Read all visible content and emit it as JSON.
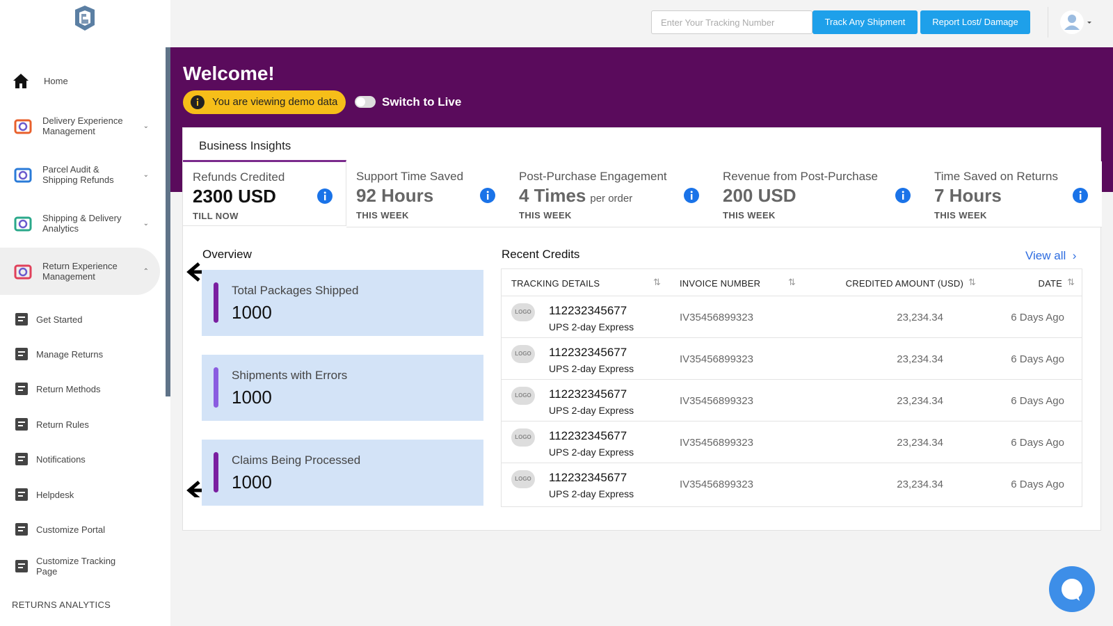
{
  "sidebar": {
    "items": [
      {
        "label": "Home",
        "kind": "main"
      },
      {
        "label": "Delivery Experience Management",
        "kind": "group"
      },
      {
        "label": "Parcel Audit & Shipping Refunds",
        "kind": "group"
      },
      {
        "label": "Shipping & Delivery Analytics",
        "kind": "group"
      },
      {
        "label": "Return Experience Management",
        "kind": "open"
      },
      {
        "label": "Get Started",
        "kind": "sub"
      },
      {
        "label": "Manage Returns",
        "kind": "sub"
      },
      {
        "label": "Return Methods",
        "kind": "sub"
      },
      {
        "label": "Return Rules",
        "kind": "sub"
      },
      {
        "label": "Notifications",
        "kind": "sub"
      },
      {
        "label": "Helpdesk",
        "kind": "sub"
      },
      {
        "label": "Customize Portal",
        "kind": "sub"
      },
      {
        "label": "Customize Tracking Page",
        "kind": "sub"
      }
    ],
    "section": "RETURNS ANALYTICS"
  },
  "header": {
    "tracking_placeholder": "Enter Your Tracking Number",
    "track_button": "Track Any Shipment",
    "report_button": "Report Lost/ Damage"
  },
  "banner": {
    "title": "Welcome!",
    "demo_notice": "You are viewing demo data",
    "switch_label": "Switch to Live"
  },
  "insights": {
    "tab": "Business Insights",
    "cards": [
      {
        "label": "Refunds Credited",
        "value": "2300 USD",
        "period": "TILL NOW"
      },
      {
        "label": "Support Time Saved",
        "value": "92 Hours",
        "period": "THIS WEEK"
      },
      {
        "label": "Post-Purchase Engagement",
        "value": "4 Times",
        "suffix": "per order",
        "period": "THIS WEEK"
      },
      {
        "label": "Revenue from Post-Purchase",
        "value": "200 USD",
        "period": "THIS WEEK"
      },
      {
        "label": "Time Saved on Returns",
        "value": "7 Hours",
        "period": "THIS WEEK"
      }
    ]
  },
  "overview": {
    "title": "Overview",
    "stats": [
      {
        "label": "Total Packages Shipped",
        "value": 1000
      },
      {
        "label": "Shipments with Errors",
        "value": 1000
      },
      {
        "label": "Claims Being Processed",
        "value": 1000
      }
    ]
  },
  "recent_credits": {
    "title": "Recent Credits",
    "view_all": "View all",
    "columns": [
      "TRACKING DETAILS",
      "INVOICE NUMBER",
      "CREDITED AMOUNT (USD)",
      "DATE"
    ],
    "rows": [
      {
        "logo": "LOGO",
        "tracking": "112232345677",
        "carrier": "UPS 2-day Express",
        "invoice": "IV35456899323",
        "amount": "23,234.34",
        "date": "6 Days Ago"
      },
      {
        "logo": "LOGO",
        "tracking": "112232345677",
        "carrier": "UPS 2-day Express",
        "invoice": "IV35456899323",
        "amount": "23,234.34",
        "date": "6 Days Ago"
      },
      {
        "logo": "LOGO",
        "tracking": "112232345677",
        "carrier": "UPS 2-day Express",
        "invoice": "IV35456899323",
        "amount": "23,234.34",
        "date": "6 Days Ago"
      },
      {
        "logo": "LOGO",
        "tracking": "112232345677",
        "carrier": "UPS 2-day Express",
        "invoice": "IV35456899323",
        "amount": "23,234.34",
        "date": "6 Days Ago"
      },
      {
        "logo": "LOGO",
        "tracking": "112232345677",
        "carrier": "UPS 2-day Express",
        "invoice": "IV35456899323",
        "amount": "23,234.34",
        "date": "6 Days Ago"
      }
    ]
  }
}
